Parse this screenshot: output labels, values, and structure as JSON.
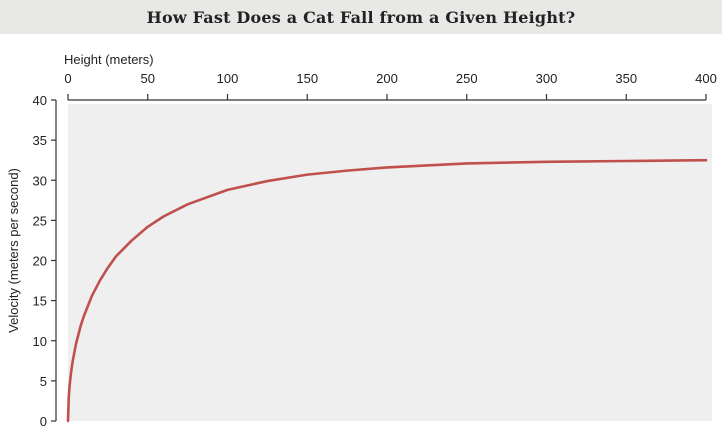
{
  "title": "How Fast Does a Cat Fall from a Given Height?",
  "colors": {
    "title_background": "#e8e8e6",
    "plot_background": "#efefef",
    "curve": "#c0504d",
    "axis": "#333333"
  },
  "chart_data": {
    "type": "line",
    "title": "How Fast Does a Cat Fall from a Given Height?",
    "xlabel": "Height (meters)",
    "ylabel": "Velocity (meters per second)",
    "x_axis_position": "top",
    "xlim": [
      0,
      400
    ],
    "ylim": [
      0,
      40
    ],
    "x_ticks": [
      "0",
      "50",
      "100",
      "150",
      "200",
      "250",
      "300",
      "350",
      "400"
    ],
    "y_ticks": [
      "0",
      "5",
      "10",
      "15",
      "20",
      "25",
      "30",
      "35",
      "40"
    ],
    "grid": false,
    "legend": "none",
    "series": [
      {
        "x": [
          0,
          0.5,
          1,
          2,
          3,
          5,
          8,
          10,
          15,
          20,
          25,
          30,
          40,
          50,
          60,
          75,
          100,
          125,
          150,
          175,
          200,
          250,
          300,
          350,
          400
        ],
        "y": [
          0,
          3.1,
          4.4,
          6.2,
          7.5,
          9.6,
          11.9,
          13.1,
          15.6,
          17.5,
          19.1,
          20.5,
          22.5,
          24.2,
          25.5,
          27.0,
          28.8,
          29.9,
          30.7,
          31.2,
          31.6,
          32.1,
          32.3,
          32.4,
          32.5
        ]
      }
    ]
  }
}
